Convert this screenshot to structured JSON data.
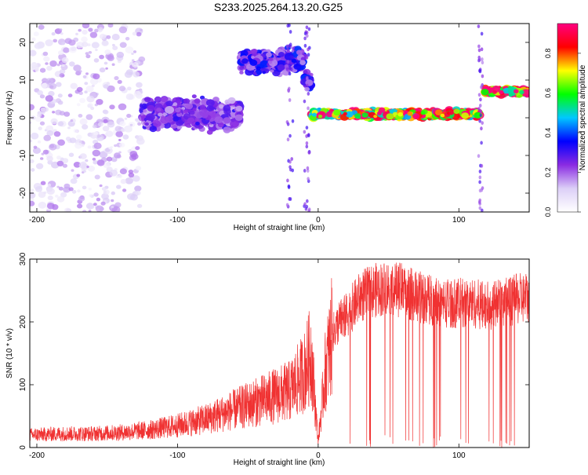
{
  "title": "S233.2025.264.13.20.G25",
  "chart_data": [
    {
      "type": "heatmap",
      "xlabel": "Height of straight line (km)",
      "ylabel": "Frequency (Hz)",
      "xlim": [
        -205,
        150
      ],
      "ylim": [
        -25,
        25
      ],
      "xticks": [
        -200,
        -100,
        0,
        100
      ],
      "yticks": [
        -20,
        -10,
        0,
        10,
        20
      ],
      "colorbar": {
        "label": "Normalized spectral amplitude",
        "range": [
          0.0,
          0.95
        ],
        "ticks": [
          "0.0",
          "0.2",
          "0.4",
          "0.6",
          "0.8"
        ],
        "colors": [
          "#ffffff",
          "#dccff7",
          "#8a2be2",
          "#0000ff",
          "#00c8ff",
          "#00ff00",
          "#ffff00",
          "#ff0000",
          "#ff0080"
        ]
      },
      "segments": [
        {
          "x": [
            -205,
            -125
          ],
          "freq_center": 0,
          "freq_spread": 25,
          "amplitude": 0.1
        },
        {
          "x": [
            -125,
            -55
          ],
          "freq_center": 1,
          "freq_spread": 4,
          "amplitude": 0.25
        },
        {
          "x": [
            -55,
            -10
          ],
          "freq_center": 15,
          "freq_spread": 3,
          "amplitude": 0.3
        },
        {
          "x": [
            -10,
            -5
          ],
          "freq_center": 10,
          "freq_spread": 2,
          "amplitude": 0.3
        },
        {
          "x": [
            -5,
            115
          ],
          "freq_center": 1,
          "freq_spread": 1,
          "amplitude": 0.8
        },
        {
          "x": [
            118,
            150
          ],
          "freq_center": 7,
          "freq_spread": 1,
          "amplitude": 0.85
        }
      ]
    },
    {
      "type": "line",
      "xlabel": "Height of straight line (km)",
      "ylabel": "SNR (10 * v/v)",
      "xlim": [
        -205,
        150
      ],
      "ylim": [
        0,
        300
      ],
      "xticks": [
        -200,
        -100,
        0,
        100
      ],
      "yticks": [
        0,
        100,
        200,
        300
      ],
      "line_color": "#f03232",
      "series": [
        {
          "x": [
            -205,
            -180,
            -160,
            -140,
            -120,
            -100,
            -80,
            -60,
            -40,
            -20,
            -10,
            -5,
            0,
            5,
            10,
            15,
            20,
            30,
            40,
            50,
            60,
            70,
            80,
            90,
            100,
            110,
            120,
            130,
            140,
            150
          ],
          "values": [
            20,
            22,
            22,
            24,
            28,
            35,
            45,
            60,
            75,
            90,
            120,
            150,
            10,
            120,
            180,
            200,
            210,
            240,
            250,
            255,
            250,
            240,
            235,
            230,
            230,
            230,
            225,
            230,
            235,
            240
          ]
        }
      ]
    }
  ]
}
